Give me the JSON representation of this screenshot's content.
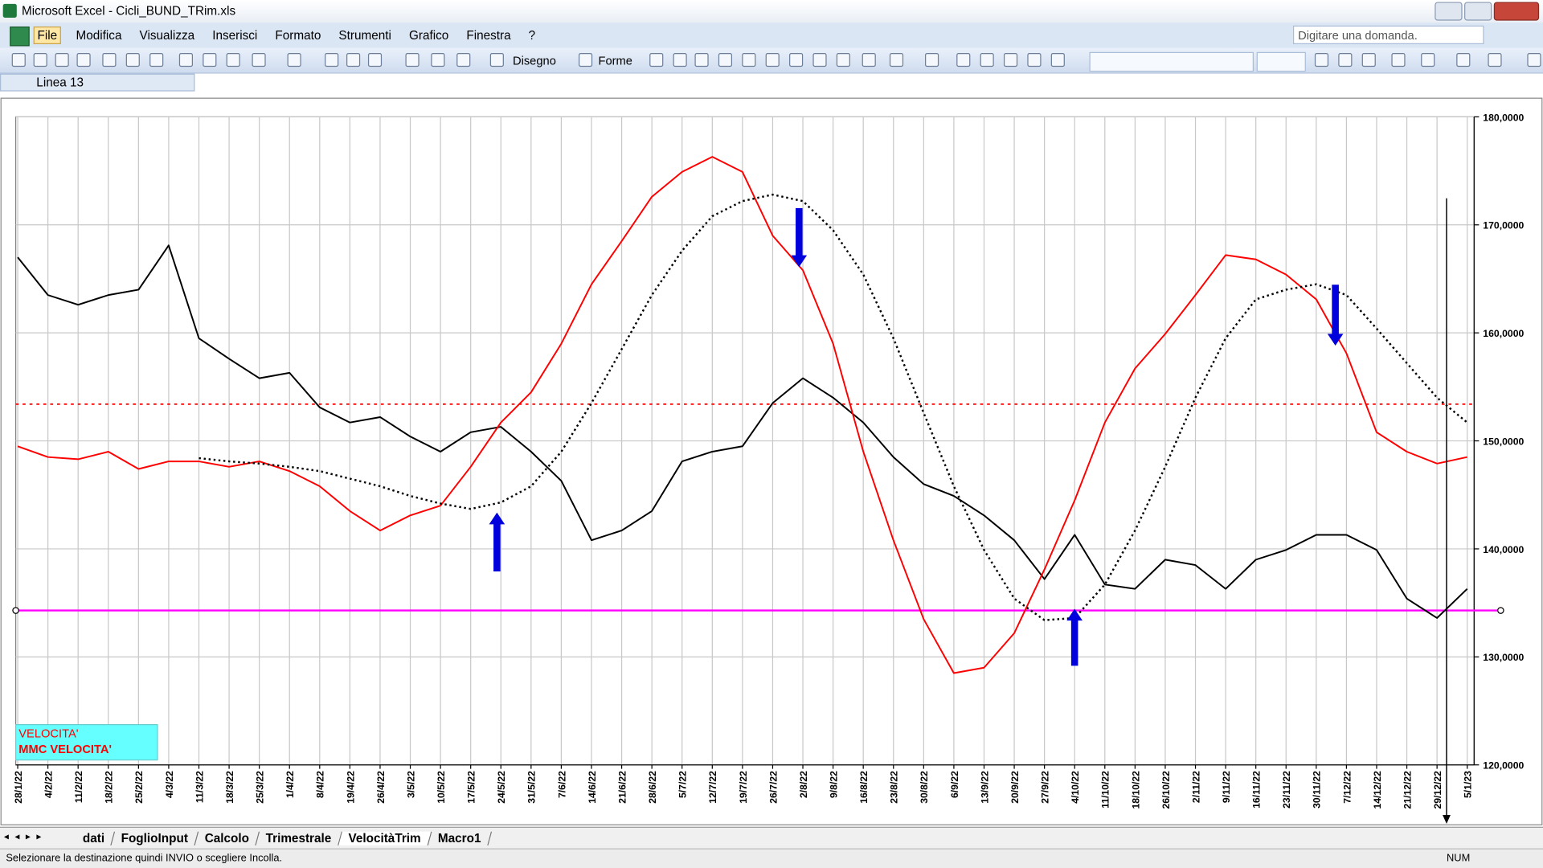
{
  "window": {
    "title": "Microsoft Excel - Cicli_BUND_TRim.xls"
  },
  "menu": [
    "File",
    "Modifica",
    "Visualizza",
    "Inserisci",
    "Formato",
    "Strumenti",
    "Grafico",
    "Finestra",
    "?"
  ],
  "help_box": "Digitare una domanda.",
  "toolbar": {
    "drawing": "Disegno",
    "shapes": "Forme"
  },
  "name_box": "Linea 13",
  "chart_data": {
    "type": "line",
    "categories": [
      "28/1/22",
      "4/2/22",
      "11/2/22",
      "18/2/22",
      "25/2/22",
      "4/3/22",
      "11/3/22",
      "18/3/22",
      "25/3/22",
      "1/4/22",
      "8/4/22",
      "19/4/22",
      "26/4/22",
      "3/5/22",
      "10/5/22",
      "17/5/22",
      "24/5/22",
      "31/5/22",
      "7/6/22",
      "14/6/22",
      "21/6/22",
      "28/6/22",
      "5/7/22",
      "12/7/22",
      "19/7/22",
      "26/7/22",
      "2/8/22",
      "9/8/22",
      "16/8/22",
      "23/8/22",
      "30/8/22",
      "6/9/22",
      "13/9/22",
      "20/9/22",
      "27/9/22",
      "4/10/22",
      "11/10/22",
      "18/10/22",
      "26/10/22",
      "2/11/22",
      "9/11/22",
      "16/11/22",
      "23/11/22",
      "30/11/22",
      "7/12/22",
      "14/12/22",
      "21/12/22",
      "29/12/22",
      "5/1/23"
    ],
    "ylim": [
      120,
      180
    ],
    "yticks": [
      {
        "value": 120,
        "label": "120,0000"
      },
      {
        "value": 130,
        "label": "130,0000"
      },
      {
        "value": 140,
        "label": "140,0000"
      },
      {
        "value": 150,
        "label": "150,0000"
      },
      {
        "value": 160,
        "label": "160,0000"
      },
      {
        "value": 170,
        "label": "170,0000"
      },
      {
        "value": 180,
        "label": "180,0000"
      }
    ],
    "grid": true,
    "series": [
      {
        "color": "#000000",
        "dash": false,
        "values": [
          167.0,
          163.5,
          162.6,
          163.5,
          164.0,
          168.1,
          159.5,
          157.6,
          155.8,
          156.3,
          153.1,
          151.7,
          152.2,
          150.4,
          149.0,
          150.8,
          151.3,
          149.0,
          146.3,
          140.8,
          141.7,
          143.5,
          148.1,
          149.0,
          149.5,
          153.5,
          155.8,
          154.0,
          151.7,
          148.5,
          146.0,
          144.9,
          143.1,
          140.8,
          137.2,
          141.3,
          136.7,
          136.3,
          139.0,
          138.5,
          136.3,
          139.0,
          139.9,
          141.3,
          141.3,
          139.9,
          135.4,
          133.6,
          136.3
        ]
      },
      {
        "name": "VELOCITA'",
        "color": "#ff0000",
        "dash": false,
        "values": [
          149.5,
          148.5,
          148.3,
          149.0,
          147.4,
          148.1,
          148.1,
          147.6,
          148.1,
          147.2,
          145.8,
          143.5,
          141.7,
          143.1,
          144.0,
          147.6,
          151.7,
          154.5,
          159.0,
          164.5,
          168.5,
          172.6,
          174.9,
          176.3,
          174.9,
          169.0,
          165.8,
          159.0,
          149.0,
          140.8,
          133.5,
          128.5,
          129.0,
          132.2,
          138.1,
          144.5,
          151.7,
          156.7,
          159.9,
          163.5,
          167.2,
          166.8,
          165.4,
          163.1,
          158.1,
          150.8,
          149.0,
          147.9,
          148.5
        ]
      },
      {
        "name": "MMC VELOCITA'",
        "color": "#000000",
        "dash": true,
        "values": [
          null,
          null,
          null,
          null,
          null,
          null,
          148.4,
          148.1,
          147.9,
          147.6,
          147.2,
          146.5,
          145.8,
          144.9,
          144.2,
          143.7,
          144.3,
          145.8,
          149.0,
          153.5,
          158.5,
          163.5,
          167.6,
          170.8,
          172.2,
          172.8,
          172.2,
          169.5,
          165.4,
          159.5,
          152.6,
          145.8,
          139.9,
          135.4,
          133.4,
          133.6,
          136.7,
          141.7,
          147.6,
          154.0,
          159.5,
          163.1,
          164.0,
          164.5,
          163.5,
          160.4,
          157.2,
          154.0,
          151.7
        ]
      }
    ],
    "hlines": [
      {
        "value": 153.4,
        "color": "#ff0000",
        "dash": true
      },
      {
        "value": 134.3,
        "color": "#ff00ff",
        "dash": false
      }
    ]
  },
  "sheet_tabs": [
    "dati",
    "FoglioInput",
    "Calcolo",
    "Trimestrale",
    "VelocitàTrim",
    "Macro1"
  ],
  "active_tab": 4,
  "status": {
    "message": "Selezionare la destinazione quindi INVIO o scegliere Incolla.",
    "num": "NUM"
  }
}
